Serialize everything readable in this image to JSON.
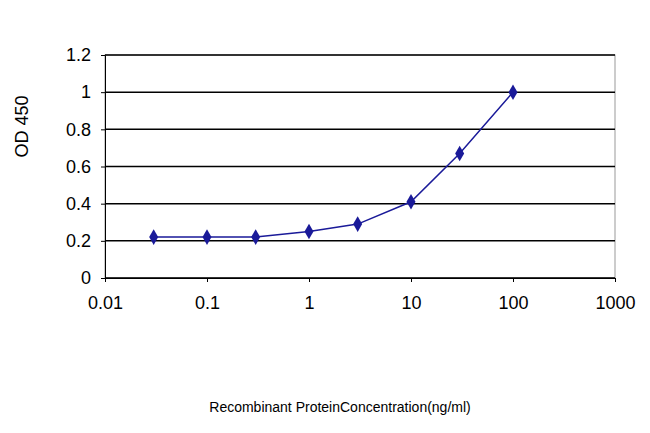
{
  "chart_data": {
    "type": "line",
    "x_label": "Recombinant ProteinConcentration(ng/ml)",
    "y_label": "OD 450",
    "x": [
      0.03,
      0.1,
      0.3,
      1,
      3,
      10,
      30,
      100
    ],
    "values": [
      0.22,
      0.22,
      0.22,
      0.25,
      0.29,
      0.41,
      0.67,
      1.0
    ],
    "color": "#1a1a99",
    "marker": "diamond",
    "line_style": "solid",
    "log": "x",
    "xlim": [
      0.01,
      1000
    ],
    "xticks": [
      0.01,
      0.1,
      1,
      10,
      100,
      1000
    ],
    "ylim": [
      0,
      1.2
    ],
    "yticks": [
      0,
      0.2,
      0.4,
      0.6,
      0.8,
      1,
      1.2
    ],
    "grid": true
  }
}
